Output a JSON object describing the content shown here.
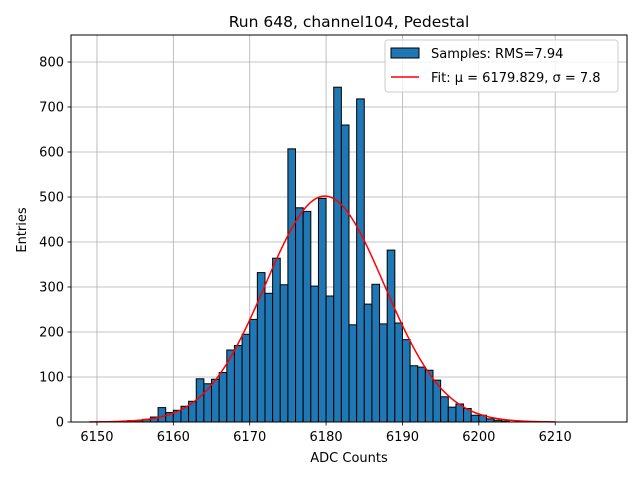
{
  "chart_data": {
    "type": "bar",
    "title": "Run 648, channel104, Pedestal",
    "xlabel": "ADC Counts",
    "ylabel": "Entries",
    "xlim": [
      6146.6,
      6219.4
    ],
    "ylim": [
      0,
      860
    ],
    "xticks": [
      6150,
      6160,
      6170,
      6180,
      6190,
      6200,
      6210
    ],
    "yticks": [
      0,
      100,
      200,
      300,
      400,
      500,
      600,
      700,
      800
    ],
    "grid": true,
    "legend_position": "top-right",
    "bar_color": "#1f77b4",
    "fit_color": "#ff0000",
    "bins": {
      "start": 6154,
      "width": 1,
      "values": [
        3,
        3,
        6,
        11,
        32,
        21,
        26,
        35,
        46,
        96,
        85,
        95,
        110,
        160,
        170,
        195,
        228,
        332,
        286,
        364,
        305,
        607,
        476,
        468,
        302,
        497,
        280,
        744,
        660,
        216,
        718,
        262,
        306,
        218,
        382,
        220,
        183,
        125,
        122,
        115,
        93,
        56,
        33,
        40,
        30,
        15,
        15,
        7,
        4,
        2
      ]
    },
    "series": [
      {
        "name": "Samples: RMS=7.94",
        "kind": "histogram"
      },
      {
        "name": "Fit: μ = 6179.829, σ = 7.8",
        "kind": "line",
        "mu": 6179.829,
        "sigma": 7.8,
        "amplitude": 502,
        "x_range": [
          6149,
          6210
        ]
      }
    ]
  }
}
